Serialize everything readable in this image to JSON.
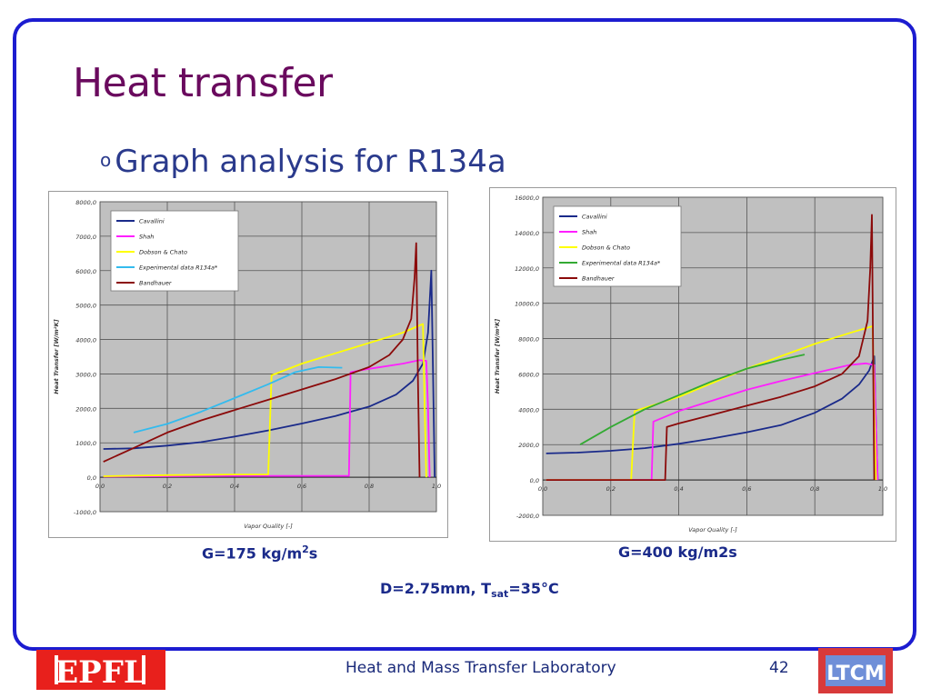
{
  "slide": {
    "title": "Heat transfer",
    "bullet_marker": "o",
    "bullet": "Graph analysis for R134a",
    "caption_left_pre": "G=175 kg/m",
    "caption_left_sup": "2",
    "caption_left_post": "s",
    "caption_right": "G=400 kg/m2s",
    "condition_pre": "D=2.75mm, T",
    "condition_sub": "sat",
    "condition_post": "=35°C",
    "footer": "Heat and Mass Transfer Laboratory",
    "page_number": "42",
    "logo_left_text": "EPFL",
    "logo_right_text": "LTCM"
  },
  "colors": {
    "title": "#6a0a5e",
    "bullet": "#2a3a8c",
    "frame": "#1c1cd0",
    "caption": "#1a2a8a",
    "epfl_red": "#e8201c",
    "plot_bg": "#c0c0c0",
    "series": {
      "Cavallini": "#1a2a8a",
      "Shah": "#ff1fff",
      "Dobson & Chato": "#ffff00",
      "Experimental data R134a* (G175)": "#33bbee",
      "Experimental data R134a* (G400)": "#33aa33",
      "Bandhauer": "#8b0a0a"
    }
  },
  "chart_data": [
    {
      "type": "line",
      "xlabel": "Vapor Quality [-]",
      "ylabel": "Heat Transfer [W/m²K]",
      "xlim": [
        0,
        1
      ],
      "ylim": [
        -1000,
        8000
      ],
      "xticks": [
        "0,0",
        "0,2",
        "0,4",
        "0,6",
        "0,8",
        "1,0"
      ],
      "yticks": [
        "8000,0",
        "7000,0",
        "6000,0",
        "5000,0",
        "4000,0",
        "3000,0",
        "2000,0",
        "1000,0",
        "0,0",
        "-1000,0"
      ],
      "grid": true,
      "legend": "top-left",
      "series": [
        {
          "name": "Cavallini",
          "points": [
            [
              0.01,
              820
            ],
            [
              0.1,
              840
            ],
            [
              0.2,
              920
            ],
            [
              0.3,
              1020
            ],
            [
              0.4,
              1180
            ],
            [
              0.5,
              1360
            ],
            [
              0.6,
              1560
            ],
            [
              0.7,
              1780
            ],
            [
              0.8,
              2050
            ],
            [
              0.88,
              2400
            ],
            [
              0.93,
              2800
            ],
            [
              0.96,
              3300
            ],
            [
              0.975,
              4200
            ],
            [
              0.985,
              6000
            ],
            [
              0.99,
              3000
            ],
            [
              0.995,
              0
            ]
          ]
        },
        {
          "name": "Shah",
          "points": [
            [
              0.01,
              20
            ],
            [
              0.2,
              30
            ],
            [
              0.4,
              40
            ],
            [
              0.6,
              40
            ],
            [
              0.74,
              40
            ],
            [
              0.745,
              3050
            ],
            [
              0.8,
              3150
            ],
            [
              0.9,
              3300
            ],
            [
              0.95,
              3400
            ],
            [
              0.97,
              3380
            ],
            [
              0.975,
              2000
            ],
            [
              0.98,
              0
            ]
          ]
        },
        {
          "name": "Dobson & Chato",
          "points": [
            [
              0.01,
              30
            ],
            [
              0.2,
              60
            ],
            [
              0.4,
              80
            ],
            [
              0.5,
              80
            ],
            [
              0.51,
              2960
            ],
            [
              0.6,
              3300
            ],
            [
              0.7,
              3600
            ],
            [
              0.8,
              3900
            ],
            [
              0.9,
              4200
            ],
            [
              0.96,
              4450
            ],
            [
              0.965,
              2000
            ],
            [
              0.97,
              0
            ]
          ]
        },
        {
          "name": "Experimental data R134a*",
          "points": [
            [
              0.1,
              1300
            ],
            [
              0.2,
              1550
            ],
            [
              0.3,
              1900
            ],
            [
              0.4,
              2300
            ],
            [
              0.5,
              2700
            ],
            [
              0.58,
              3050
            ],
            [
              0.65,
              3200
            ],
            [
              0.72,
              3180
            ]
          ]
        },
        {
          "name": "Bandhauer",
          "points": [
            [
              0.01,
              450
            ],
            [
              0.1,
              850
            ],
            [
              0.2,
              1300
            ],
            [
              0.3,
              1650
            ],
            [
              0.4,
              1950
            ],
            [
              0.5,
              2250
            ],
            [
              0.6,
              2550
            ],
            [
              0.7,
              2850
            ],
            [
              0.8,
              3200
            ],
            [
              0.86,
              3550
            ],
            [
              0.9,
              4000
            ],
            [
              0.925,
              4600
            ],
            [
              0.935,
              5800
            ],
            [
              0.94,
              6800
            ],
            [
              0.945,
              3000
            ],
            [
              0.95,
              0
            ]
          ]
        }
      ]
    },
    {
      "type": "line",
      "xlabel": "Vapor Quality [-]",
      "ylabel": "Heat Transfer [W/m²K]",
      "xlim": [
        0,
        1
      ],
      "ylim": [
        -2000,
        16000
      ],
      "xticks": [
        "0,0",
        "0,2",
        "0,4",
        "0,6",
        "0,8",
        "1,0"
      ],
      "yticks": [
        "16000,0",
        "14000,0",
        "12000,0",
        "10000,0",
        "8000,0",
        "6000,0",
        "4000,0",
        "2000,0",
        "0,0",
        "-2000,0"
      ],
      "grid": true,
      "legend": "top-left",
      "series": [
        {
          "name": "Cavallini",
          "points": [
            [
              0.01,
              1500
            ],
            [
              0.1,
              1550
            ],
            [
              0.2,
              1650
            ],
            [
              0.3,
              1800
            ],
            [
              0.4,
              2050
            ],
            [
              0.5,
              2350
            ],
            [
              0.6,
              2700
            ],
            [
              0.7,
              3100
            ],
            [
              0.8,
              3800
            ],
            [
              0.88,
              4600
            ],
            [
              0.93,
              5400
            ],
            [
              0.96,
              6200
            ],
            [
              0.975,
              7000
            ],
            [
              0.98,
              3000
            ],
            [
              0.985,
              0
            ]
          ]
        },
        {
          "name": "Shah",
          "points": [
            [
              0.01,
              0
            ],
            [
              0.2,
              0
            ],
            [
              0.32,
              0
            ],
            [
              0.325,
              3300
            ],
            [
              0.4,
              3900
            ],
            [
              0.5,
              4500
            ],
            [
              0.6,
              5100
            ],
            [
              0.7,
              5600
            ],
            [
              0.8,
              6050
            ],
            [
              0.9,
              6500
            ],
            [
              0.95,
              6600
            ],
            [
              0.975,
              6500
            ],
            [
              0.98,
              3000
            ],
            [
              0.985,
              0
            ]
          ]
        },
        {
          "name": "Dobson & Chato",
          "points": [
            [
              0.01,
              0
            ],
            [
              0.2,
              0
            ],
            [
              0.26,
              0
            ],
            [
              0.27,
              3900
            ],
            [
              0.4,
              4700
            ],
            [
              0.5,
              5500
            ],
            [
              0.6,
              6300
            ],
            [
              0.7,
              7000
            ],
            [
              0.8,
              7700
            ],
            [
              0.9,
              8300
            ],
            [
              0.97,
              8700
            ],
            [
              0.975,
              4000
            ],
            [
              0.98,
              0
            ]
          ]
        },
        {
          "name": "Experimental data R134a*",
          "points": [
            [
              0.11,
              2000
            ],
            [
              0.2,
              3000
            ],
            [
              0.3,
              4000
            ],
            [
              0.4,
              4800
            ],
            [
              0.5,
              5600
            ],
            [
              0.6,
              6300
            ],
            [
              0.7,
              6800
            ],
            [
              0.77,
              7100
            ]
          ]
        },
        {
          "name": "Bandhauer",
          "points": [
            [
              0.01,
              0
            ],
            [
              0.2,
              0
            ],
            [
              0.36,
              0
            ],
            [
              0.365,
              3000
            ],
            [
              0.4,
              3200
            ],
            [
              0.5,
              3700
            ],
            [
              0.6,
              4200
            ],
            [
              0.7,
              4700
            ],
            [
              0.8,
              5300
            ],
            [
              0.88,
              6000
            ],
            [
              0.93,
              7000
            ],
            [
              0.955,
              9000
            ],
            [
              0.963,
              12000
            ],
            [
              0.968,
              15000
            ],
            [
              0.972,
              6000
            ],
            [
              0.975,
              0
            ]
          ]
        }
      ]
    }
  ]
}
